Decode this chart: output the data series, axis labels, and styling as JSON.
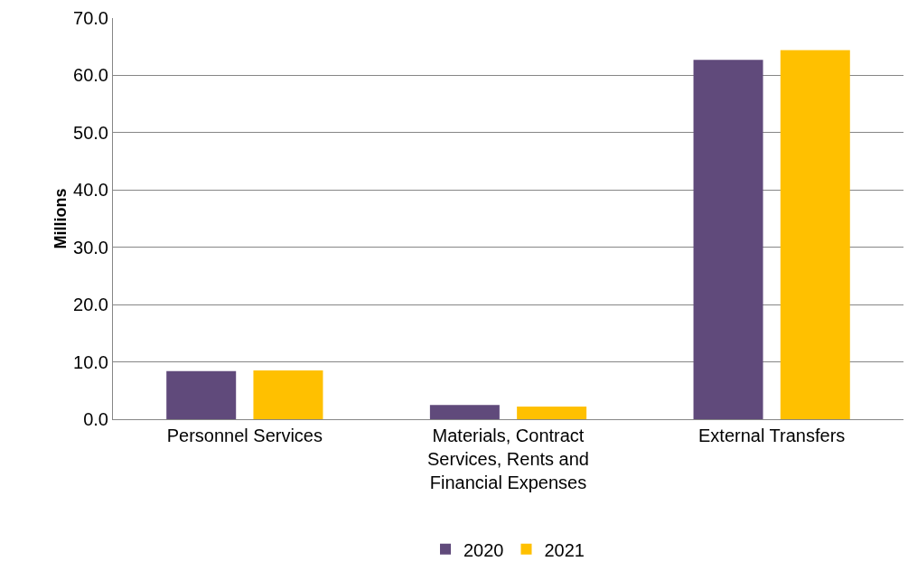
{
  "chart_data": {
    "type": "bar",
    "ylabel": "Millions",
    "categories": [
      "Personnel Services",
      "Materials, Contract Services, Rents and Financial Expenses",
      "External Transfers"
    ],
    "series": [
      {
        "name": "2020",
        "color": "#604a7b",
        "values": [
          8.4,
          2.5,
          62.7
        ]
      },
      {
        "name": "2021",
        "color": "#ffc000",
        "values": [
          8.5,
          2.2,
          64.4
        ]
      }
    ],
    "ylim": [
      0,
      70
    ],
    "yticks": [
      {
        "value": 0,
        "label": "0.0"
      },
      {
        "value": 10,
        "label": "10.0"
      },
      {
        "value": 20,
        "label": "20.0"
      },
      {
        "value": 30,
        "label": "30.0"
      },
      {
        "value": 40,
        "label": "40.0"
      },
      {
        "value": 50,
        "label": "50.0"
      },
      {
        "value": 60,
        "label": "60.0"
      },
      {
        "value": 70,
        "label": "70.0"
      }
    ],
    "grid": "y",
    "legend": "bottom"
  }
}
